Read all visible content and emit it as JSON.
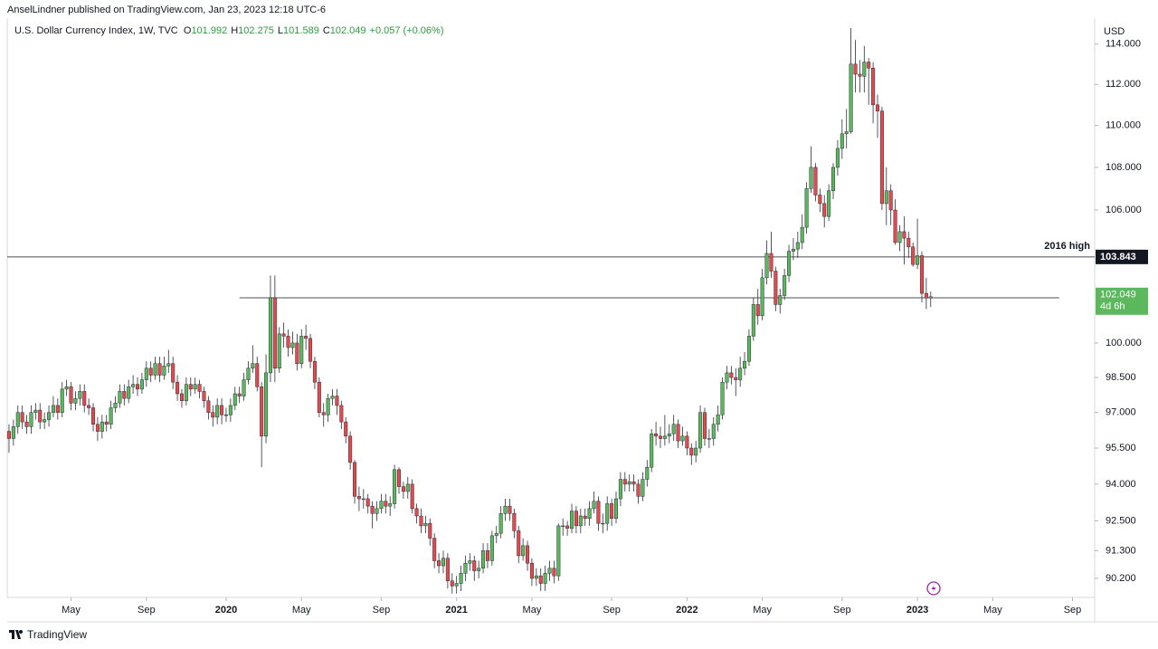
{
  "header": {
    "publisher": "AnselLindner published on TradingView.com, Jan 23, 2023 12:18 UTC-6"
  },
  "chart_data": {
    "type": "candlestick",
    "title": "U.S. Dollar Currency Index, 1W, TVC",
    "legend_keys": [
      "O",
      "H",
      "L",
      "C"
    ],
    "change_label": "+0.057 (+0.06%)",
    "axis_unit": "USD",
    "countdown": "4d 6h",
    "log_scale": true,
    "grid": false,
    "up_color": "#5cb85c",
    "down_color": "#e5484d",
    "legend_color": "#2e9e3e",
    "ylim": [
      89.45,
      115.3
    ],
    "yticks": [
      {
        "value": 114,
        "label": "114.000"
      },
      {
        "value": 112,
        "label": "112.000"
      },
      {
        "value": 110,
        "label": "110.000"
      },
      {
        "value": 108,
        "label": "108.000"
      },
      {
        "value": 106,
        "label": "106.000"
      },
      {
        "value": 100,
        "label": "100.000"
      },
      {
        "value": 98.5,
        "label": "98.500"
      },
      {
        "value": 97,
        "label": "97.000"
      },
      {
        "value": 95.5,
        "label": "95.500"
      },
      {
        "value": 94,
        "label": "94.000"
      },
      {
        "value": 92.5,
        "label": "92.500"
      },
      {
        "value": 91.3,
        "label": "91.300"
      },
      {
        "value": 90.2,
        "label": "90.200"
      }
    ],
    "xlim": [
      -0.4,
      245
    ],
    "xticks": [
      {
        "value": 14,
        "label": "May"
      },
      {
        "value": 31,
        "label": "Sep"
      },
      {
        "value": 49,
        "label": "2020"
      },
      {
        "value": 66,
        "label": "May"
      },
      {
        "value": 84,
        "label": "Sep"
      },
      {
        "value": 101,
        "label": "2021"
      },
      {
        "value": 118,
        "label": "May"
      },
      {
        "value": 136,
        "label": "Sep"
      },
      {
        "value": 153,
        "label": "2022"
      },
      {
        "value": 170,
        "label": "May"
      },
      {
        "value": 188,
        "label": "Sep"
      },
      {
        "value": 205,
        "label": "2023"
      },
      {
        "value": 222,
        "label": "May"
      },
      {
        "value": 240,
        "label": "Sep"
      }
    ],
    "hlines": [
      {
        "value": 103.843,
        "label": "2016 high"
      },
      {
        "value": 102.0,
        "x_from": 52,
        "x_to": 237
      }
    ],
    "ohlc": {
      "open": [
        96.2,
        95.9,
        96.4,
        97.0,
        96.6,
        96.4,
        97.0,
        97.1,
        96.6,
        96.7,
        97.0,
        97.3,
        97.0,
        98.0,
        98.1,
        97.4,
        97.6,
        97.9,
        97.3,
        97.2,
        96.5,
        96.2,
        96.6,
        96.5,
        97.2,
        97.4,
        97.9,
        97.6,
        98.1,
        98.2,
        98.0,
        98.4,
        98.9,
        98.6,
        99.1,
        98.6,
        99.0,
        99.1,
        98.3,
        97.8,
        97.5,
        98.2,
        98.0,
        98.2,
        97.9,
        97.5,
        97.0,
        96.8,
        97.3,
        96.9,
        96.9,
        97.3,
        97.8,
        97.7,
        98.4,
        98.9,
        99.1,
        98.1,
        96.0,
        98.7,
        102.0,
        98.9,
        100.4,
        100.3,
        99.8,
        100.0,
        99.1,
        100.3,
        100.2,
        99.2,
        98.3,
        97.0,
        96.9,
        97.6,
        97.7,
        97.3,
        96.6,
        96.0,
        94.9,
        93.5,
        93.4,
        93.4,
        93.1,
        92.8,
        93.0,
        93.3,
        93.1,
        93.2,
        94.6,
        93.9,
        93.7,
        94.0,
        93.0,
        92.7,
        92.3,
        92.4,
        91.8,
        90.9,
        90.7,
        91.0,
        90.1,
        89.9,
        90.0,
        90.4,
        90.8,
        90.9,
        90.5,
        90.6,
        91.3,
        90.9,
        91.9,
        92.0,
        92.8,
        93.1,
        92.8,
        92.1,
        91.1,
        91.5,
        90.8,
        90.2,
        90.3,
        90.0,
        90.4,
        90.6,
        90.3,
        92.3,
        92.3,
        92.2,
        92.9,
        92.3,
        92.7,
        92.6,
        93.0,
        93.3,
        92.4,
        92.4,
        93.2,
        92.6,
        93.4,
        94.2,
        94.0,
        94.1,
        94.0,
        93.5,
        94.2,
        94.7,
        96.1,
        96.0,
        95.9,
        96.0,
        96.1,
        96.5,
        95.8,
        96.0,
        95.5,
        95.2,
        95.5,
        97.0,
        95.9,
        95.9,
        96.5,
        96.9,
        98.3,
        98.7,
        98.5,
        98.4,
        98.9,
        99.2,
        100.3,
        101.7,
        101.2,
        102.9,
        104.0,
        103.2,
        101.7,
        102.1,
        103.0,
        104.1,
        104.2,
        104.5,
        105.2,
        107.0,
        108.0,
        106.7,
        106.3,
        105.7,
        106.9,
        108.0,
        108.9,
        109.6,
        109.7,
        113.0,
        112.5,
        112.4,
        113.1,
        112.8,
        111.0,
        110.7,
        106.3,
        106.9,
        106.0,
        104.5,
        105.0,
        104.7,
        104.3,
        103.5,
        103.9,
        102.2,
        101.992
      ],
      "high": [
        96.5,
        96.7,
        97.3,
        97.3,
        96.9,
        97.3,
        97.4,
        97.4,
        97.0,
        97.3,
        97.7,
        97.6,
        98.3,
        98.4,
        98.3,
        97.9,
        98.2,
        98.2,
        97.6,
        97.4,
        96.8,
        96.9,
        96.9,
        97.5,
        97.7,
        98.2,
        98.2,
        98.4,
        98.6,
        98.5,
        98.7,
        99.2,
        99.2,
        99.4,
        99.4,
        99.4,
        99.7,
        99.4,
        98.6,
        98.0,
        98.5,
        98.5,
        98.5,
        98.4,
        98.1,
        97.7,
        97.3,
        97.6,
        97.6,
        97.2,
        97.6,
        98.1,
        98.1,
        98.7,
        99.2,
        99.9,
        99.4,
        98.3,
        99.5,
        103.0,
        103.0,
        100.7,
        100.9,
        100.6,
        100.5,
        100.4,
        100.6,
        100.8,
        100.4,
        99.4,
        98.5,
        97.4,
        97.8,
        98.0,
        98.0,
        97.5,
        96.8,
        96.2,
        95.0,
        93.9,
        93.8,
        93.6,
        93.3,
        93.3,
        93.6,
        93.6,
        93.5,
        94.8,
        94.7,
        94.1,
        94.3,
        94.2,
        93.2,
        93.0,
        92.7,
        92.6,
        92.0,
        91.2,
        91.3,
        91.2,
        90.4,
        90.3,
        90.7,
        91.1,
        91.2,
        91.1,
        90.9,
        91.6,
        91.6,
        92.1,
        92.3,
        93.1,
        93.4,
        93.4,
        93.0,
        92.3,
        91.8,
        91.7,
        91.0,
        90.6,
        90.6,
        90.7,
        90.9,
        90.9,
        92.4,
        92.6,
        92.5,
        93.2,
        93.1,
        93.0,
        93.0,
        93.3,
        93.7,
        93.5,
        92.8,
        93.5,
        93.4,
        93.7,
        94.5,
        94.5,
        94.4,
        94.4,
        94.2,
        94.5,
        95.0,
        96.3,
        96.6,
        96.4,
        96.9,
        96.5,
        96.9,
        96.7,
        96.4,
        96.2,
        95.7,
        95.8,
        97.3,
        97.2,
        96.3,
        96.8,
        97.3,
        98.5,
        99.0,
        99.0,
        98.9,
        99.4,
        99.6,
        100.6,
        102.0,
        102.4,
        103.3,
        104.6,
        105.0,
        103.4,
        102.4,
        103.3,
        104.4,
        104.7,
        105.0,
        105.8,
        107.3,
        109.0,
        108.2,
        107.0,
        106.7,
        107.2,
        108.2,
        109.3,
        110.3,
        110.8,
        114.8,
        114.2,
        113.2,
        113.9,
        113.3,
        113.1,
        111.5,
        110.9,
        108.0,
        107.2,
        106.5,
        105.3,
        105.7,
        105.0,
        104.5,
        105.6,
        104.1,
        102.9,
        102.275
      ],
      "low": [
        95.3,
        95.6,
        96.1,
        96.3,
        96.1,
        96.1,
        96.7,
        96.3,
        96.3,
        96.4,
        96.8,
        96.7,
        96.8,
        97.7,
        97.1,
        97.1,
        97.3,
        97.0,
        96.9,
        96.2,
        95.8,
        95.9,
        96.2,
        96.3,
        97.0,
        97.2,
        97.3,
        97.4,
        97.8,
        97.7,
        97.8,
        98.1,
        98.3,
        98.4,
        98.3,
        98.4,
        98.7,
        98.0,
        97.5,
        97.2,
        97.3,
        97.7,
        97.8,
        97.6,
        97.2,
        96.7,
        96.4,
        96.5,
        96.5,
        96.6,
        96.6,
        97.1,
        97.4,
        97.5,
        98.2,
        98.7,
        97.9,
        94.7,
        95.7,
        98.3,
        98.3,
        98.7,
        99.8,
        99.4,
        99.5,
        98.8,
        98.9,
        99.7,
        98.9,
        98.0,
        96.8,
        96.4,
        96.6,
        97.3,
        96.9,
        96.3,
        95.7,
        94.6,
        93.2,
        92.9,
        93.0,
        92.8,
        92.2,
        92.5,
        92.8,
        92.8,
        92.7,
        93.0,
        93.6,
        93.4,
        93.4,
        92.8,
        92.4,
        92.0,
        92.0,
        91.5,
        90.6,
        90.4,
        90.4,
        89.8,
        89.6,
        89.6,
        89.7,
        90.1,
        90.5,
        90.1,
        90.2,
        90.4,
        90.6,
        90.7,
        91.6,
        91.8,
        92.5,
        92.5,
        91.8,
        90.8,
        90.9,
        90.5,
        89.9,
        89.9,
        89.7,
        89.7,
        90.1,
        90.0,
        90.1,
        91.9,
        91.9,
        92.0,
        92.0,
        92.0,
        92.3,
        92.3,
        92.8,
        92.1,
        92.0,
        92.1,
        92.3,
        92.4,
        93.1,
        93.7,
        93.7,
        93.7,
        93.2,
        93.3,
        93.9,
        94.5,
        95.6,
        95.5,
        95.6,
        95.7,
        95.8,
        95.5,
        95.6,
        95.2,
        94.8,
        94.9,
        95.3,
        95.6,
        95.5,
        95.6,
        96.2,
        96.7,
        98.0,
        98.2,
        97.7,
        98.1,
        98.6,
        99.0,
        100.1,
        100.8,
        101.0,
        102.6,
        102.9,
        101.4,
        101.3,
        101.9,
        102.7,
        103.7,
        103.8,
        104.2,
        104.9,
        106.8,
        106.4,
        105.9,
        105.2,
        105.5,
        106.5,
        107.6,
        108.4,
        108.9,
        109.6,
        111.6,
        111.6,
        111.6,
        111.0,
        110.1,
        109.4,
        106.0,
        105.3,
        105.3,
        104.4,
        104.1,
        103.5,
        103.8,
        103.4,
        103.3,
        101.8,
        101.5,
        101.589
      ],
      "close": [
        95.9,
        96.4,
        97.0,
        96.6,
        96.4,
        97.0,
        97.1,
        96.6,
        96.7,
        97.0,
        97.3,
        97.0,
        98.0,
        98.1,
        97.4,
        97.6,
        97.9,
        97.3,
        97.2,
        96.5,
        96.2,
        96.6,
        96.5,
        97.2,
        97.4,
        97.9,
        97.6,
        98.1,
        98.2,
        98.0,
        98.4,
        98.9,
        98.6,
        99.1,
        98.6,
        99.0,
        99.1,
        98.3,
        97.8,
        97.5,
        98.2,
        98.0,
        98.2,
        97.9,
        97.5,
        97.0,
        96.8,
        97.3,
        96.9,
        96.9,
        97.3,
        97.8,
        97.7,
        98.4,
        98.9,
        99.1,
        98.1,
        96.0,
        98.7,
        102.0,
        98.9,
        100.4,
        100.3,
        99.8,
        100.0,
        99.1,
        100.3,
        100.2,
        99.2,
        98.3,
        97.0,
        96.9,
        97.6,
        97.7,
        97.3,
        96.6,
        96.0,
        94.9,
        93.5,
        93.4,
        93.4,
        93.1,
        92.8,
        93.0,
        93.3,
        93.1,
        93.2,
        94.6,
        93.9,
        93.7,
        94.0,
        93.0,
        92.7,
        92.3,
        92.4,
        91.8,
        90.9,
        90.7,
        91.0,
        90.1,
        89.9,
        90.0,
        90.4,
        90.8,
        90.9,
        90.5,
        90.6,
        91.3,
        90.9,
        91.9,
        92.0,
        92.8,
        93.1,
        92.8,
        92.1,
        91.1,
        91.5,
        90.8,
        90.2,
        90.3,
        90.0,
        90.4,
        90.6,
        90.3,
        92.3,
        92.3,
        92.2,
        92.9,
        92.3,
        92.7,
        92.6,
        93.0,
        93.3,
        92.4,
        92.4,
        93.2,
        92.6,
        93.4,
        94.2,
        94.0,
        94.1,
        94.0,
        93.5,
        94.2,
        94.7,
        96.1,
        96.0,
        95.9,
        96.0,
        96.1,
        96.5,
        95.8,
        96.0,
        95.5,
        95.2,
        95.5,
        97.0,
        95.9,
        95.9,
        96.5,
        96.9,
        98.3,
        98.7,
        98.5,
        98.4,
        98.9,
        99.2,
        100.3,
        101.7,
        101.2,
        102.9,
        104.0,
        103.2,
        101.7,
        102.1,
        103.0,
        104.1,
        104.2,
        104.5,
        105.2,
        107.0,
        108.0,
        106.7,
        106.3,
        105.7,
        106.9,
        108.0,
        108.9,
        109.6,
        109.7,
        113.0,
        112.5,
        112.4,
        113.1,
        112.8,
        111.0,
        110.7,
        106.3,
        106.9,
        106.0,
        104.5,
        105.0,
        104.7,
        104.3,
        103.5,
        103.9,
        102.2,
        101.99,
        102.049
      ]
    }
  },
  "footer": {
    "brand": "TradingView"
  }
}
